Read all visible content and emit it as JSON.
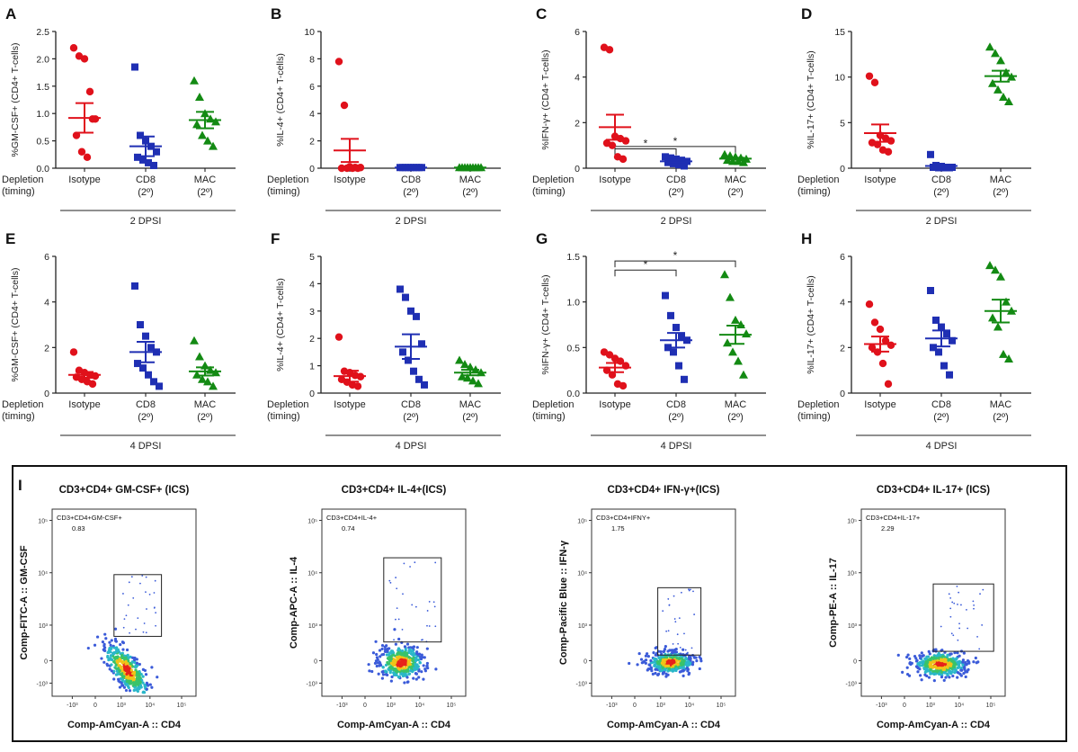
{
  "figure": {
    "panel_I_label": "I",
    "depletion_label_1": "Depletion",
    "depletion_label_2": "(timing)",
    "colors": {
      "isotype": "#e0111b",
      "cd8": "#1f2fb3",
      "mac": "#138a13",
      "axis": "#222222"
    }
  },
  "chart_data": [
    {
      "panel": "A",
      "type": "scatter",
      "ylabel": "%GM-CSF+ (CD4+ T-cells)",
      "ylim": [
        0,
        2.5
      ],
      "yticks": [
        "0.0",
        "0.5",
        "1.0",
        "1.5",
        "2.0",
        "2.5"
      ],
      "ytick_values": [
        0,
        0.5,
        1.0,
        1.5,
        2.0,
        2.5
      ],
      "categories": [
        "Isotype",
        "CD8",
        "MAC"
      ],
      "category_sublabels": [
        "",
        "(2º)",
        "(2º)"
      ],
      "group_label": "2 DPSI",
      "series": [
        {
          "name": "Isotype",
          "marker": "circle",
          "values": [
            2.2,
            2.05,
            2.0,
            1.4,
            0.9,
            0.6,
            0.3,
            0.2,
            0.9
          ],
          "mean": 0.92,
          "sem": 0.27
        },
        {
          "name": "CD8",
          "marker": "square",
          "values": [
            1.85,
            0.6,
            0.5,
            0.4,
            0.3,
            0.2,
            0.15,
            0.1,
            0.05
          ],
          "mean": 0.4,
          "sem": 0.18
        },
        {
          "name": "MAC",
          "marker": "triangle",
          "values": [
            1.6,
            1.3,
            1.0,
            0.9,
            0.85,
            0.8,
            0.6,
            0.5,
            0.4
          ],
          "mean": 0.88,
          "sem": 0.15
        }
      ],
      "significance": []
    },
    {
      "panel": "B",
      "type": "scatter",
      "ylabel": "%IL-4+ (CD4+ T-cells)",
      "ylim": [
        0,
        10
      ],
      "yticks": [
        "0",
        "2",
        "4",
        "6",
        "8",
        "10"
      ],
      "ytick_values": [
        0,
        2,
        4,
        6,
        8,
        10
      ],
      "categories": [
        "Isotype",
        "CD8",
        "MAC"
      ],
      "category_sublabels": [
        "",
        "(2º)",
        "(2º)"
      ],
      "group_label": "2 DPSI",
      "series": [
        {
          "name": "Isotype",
          "marker": "circle",
          "values": [
            7.8,
            4.6,
            0.1,
            0.05,
            0.05,
            0,
            0,
            0,
            0
          ],
          "mean": 1.3,
          "sem": 0.85
        },
        {
          "name": "CD8",
          "marker": "square",
          "values": [
            0.05,
            0.05,
            0.05,
            0.05,
            0.05,
            0.05,
            0.05,
            0.05,
            0.05
          ],
          "mean": 0.05,
          "sem": 0.0
        },
        {
          "name": "MAC",
          "marker": "triangle",
          "values": [
            0.05,
            0.05,
            0.05,
            0.05,
            0.05,
            0.05,
            0.05,
            0.05,
            0.05
          ],
          "mean": 0.05,
          "sem": 0.0
        }
      ],
      "significance": []
    },
    {
      "panel": "C",
      "type": "scatter",
      "ylabel": "%IFN-γ+ (CD4+ T-cells)",
      "ylim": [
        0,
        6
      ],
      "yticks": [
        "0",
        "2",
        "4",
        "6"
      ],
      "ytick_values": [
        0,
        2,
        4,
        6
      ],
      "categories": [
        "Isotype",
        "CD8",
        "MAC"
      ],
      "category_sublabels": [
        "",
        "(2º)",
        "(2º)"
      ],
      "group_label": "2 DPSI",
      "series": [
        {
          "name": "Isotype",
          "marker": "circle",
          "values": [
            5.3,
            5.2,
            1.4,
            1.3,
            1.2,
            1.1,
            1.0,
            0.5,
            0.4
          ],
          "mean": 1.8,
          "sem": 0.55
        },
        {
          "name": "CD8",
          "marker": "square",
          "values": [
            0.5,
            0.45,
            0.4,
            0.35,
            0.3,
            0.25,
            0.2,
            0.15,
            0.1
          ],
          "mean": 0.3,
          "sem": 0.06
        },
        {
          "name": "MAC",
          "marker": "triangle",
          "values": [
            0.6,
            0.55,
            0.5,
            0.45,
            0.4,
            0.35,
            0.3,
            0.3,
            0.25
          ],
          "mean": 0.42,
          "sem": 0.04
        }
      ],
      "significance": [
        {
          "from": 0,
          "to": 1,
          "label": "*",
          "level": 0.85
        },
        {
          "from": 0,
          "to": 2,
          "label": "*",
          "level": 0.95
        }
      ]
    },
    {
      "panel": "D",
      "type": "scatter",
      "ylabel": "%IL-17+ (CD4+ T-cells)",
      "ylim": [
        0,
        15
      ],
      "yticks": [
        "0",
        "5",
        "10",
        "15"
      ],
      "ytick_values": [
        0,
        5,
        10,
        15
      ],
      "categories": [
        "Isotype",
        "CD8",
        "MAC"
      ],
      "category_sublabels": [
        "",
        "(2º)",
        "(2º)"
      ],
      "group_label": "2 DPSI",
      "series": [
        {
          "name": "Isotype",
          "marker": "circle",
          "values": [
            10.1,
            9.4,
            3.6,
            3.3,
            3.0,
            2.8,
            2.6,
            2.0,
            1.8
          ],
          "mean": 3.85,
          "sem": 0.95
        },
        {
          "name": "CD8",
          "marker": "square",
          "values": [
            1.5,
            0.3,
            0.2,
            0.1,
            0.1,
            0.1,
            0.05,
            0.05,
            0.05
          ],
          "mean": 0.25,
          "sem": 0.15
        },
        {
          "name": "MAC",
          "marker": "triangle",
          "values": [
            13.3,
            12.6,
            11.8,
            10.5,
            10.0,
            9.3,
            8.6,
            7.8,
            7.3
          ],
          "mean": 10.1,
          "sem": 0.6
        }
      ],
      "significance": []
    },
    {
      "panel": "E",
      "type": "scatter",
      "ylabel": "%GM-CSF+ (CD4+ T-cells)",
      "ylim": [
        0,
        6
      ],
      "yticks": [
        "0",
        "2",
        "4",
        "6"
      ],
      "ytick_values": [
        0,
        2,
        4,
        6
      ],
      "categories": [
        "Isotype",
        "CD8",
        "MAC"
      ],
      "category_sublabels": [
        "",
        "(2º)",
        "(2º)"
      ],
      "group_label": "4 DPSI",
      "series": [
        {
          "name": "Isotype",
          "marker": "circle",
          "values": [
            1.8,
            1.0,
            0.9,
            0.8,
            0.75,
            0.7,
            0.6,
            0.5,
            0.4
          ],
          "mean": 0.8,
          "sem": 0.13
        },
        {
          "name": "CD8",
          "marker": "square",
          "values": [
            4.7,
            3.0,
            2.5,
            2.0,
            1.8,
            1.3,
            1.1,
            0.8,
            0.5,
            0.3
          ],
          "mean": 1.8,
          "sem": 0.45
        },
        {
          "name": "MAC",
          "marker": "triangle",
          "values": [
            2.3,
            1.6,
            1.2,
            1.0,
            0.9,
            0.8,
            0.6,
            0.5,
            0.3
          ],
          "mean": 0.95,
          "sem": 0.18
        }
      ],
      "significance": []
    },
    {
      "panel": "F",
      "type": "scatter",
      "ylabel": "%IL-4+ (CD4+ T-cells)",
      "ylim": [
        0,
        5
      ],
      "yticks": [
        "0",
        "1",
        "2",
        "3",
        "4",
        "5"
      ],
      "ytick_values": [
        0,
        1,
        2,
        3,
        4,
        5
      ],
      "categories": [
        "Isotype",
        "CD8",
        "MAC"
      ],
      "category_sublabels": [
        "",
        "(2º)",
        "(2º)"
      ],
      "group_label": "4 DPSI",
      "series": [
        {
          "name": "Isotype",
          "marker": "circle",
          "values": [
            2.05,
            0.8,
            0.75,
            0.65,
            0.6,
            0.5,
            0.4,
            0.3,
            0.25
          ],
          "mean": 0.62,
          "sem": 0.2
        },
        {
          "name": "CD8",
          "marker": "square",
          "values": [
            3.8,
            3.5,
            3.0,
            2.8,
            1.8,
            1.5,
            1.2,
            0.8,
            0.5,
            0.3
          ],
          "mean": 1.7,
          "sem": 0.45
        },
        {
          "name": "MAC",
          "marker": "triangle",
          "values": [
            1.2,
            1.05,
            0.95,
            0.85,
            0.75,
            0.6,
            0.55,
            0.45,
            0.35
          ],
          "mean": 0.75,
          "sem": 0.1
        }
      ],
      "significance": []
    },
    {
      "panel": "G",
      "type": "scatter",
      "ylabel": "%IFN-γ+ (CD4+ T-cells)",
      "ylim": [
        0,
        1.5
      ],
      "yticks": [
        "0.0",
        "0.5",
        "1.0",
        "1.5"
      ],
      "ytick_values": [
        0,
        0.5,
        1.0,
        1.5
      ],
      "categories": [
        "Isotype",
        "CD8",
        "MAC"
      ],
      "category_sublabels": [
        "",
        "(2º)",
        "(2º)"
      ],
      "group_label": "4 DPSI",
      "series": [
        {
          "name": "Isotype",
          "marker": "circle",
          "values": [
            0.45,
            0.42,
            0.38,
            0.35,
            0.3,
            0.25,
            0.2,
            0.1,
            0.08
          ],
          "mean": 0.28,
          "sem": 0.05
        },
        {
          "name": "CD8",
          "marker": "square",
          "values": [
            1.07,
            0.85,
            0.72,
            0.62,
            0.58,
            0.5,
            0.45,
            0.3,
            0.15
          ],
          "mean": 0.58,
          "sem": 0.08
        },
        {
          "name": "MAC",
          "marker": "triangle",
          "values": [
            1.3,
            1.05,
            0.8,
            0.75,
            0.65,
            0.55,
            0.45,
            0.35,
            0.2
          ],
          "mean": 0.64,
          "sem": 0.1
        }
      ],
      "significance": [
        {
          "from": 0,
          "to": 1,
          "label": "*",
          "level": 1.35
        },
        {
          "from": 0,
          "to": 2,
          "label": "*",
          "level": 1.45
        }
      ]
    },
    {
      "panel": "H",
      "type": "scatter",
      "ylabel": "%IL-17+ (CD4+ T-cells)",
      "ylim": [
        0,
        6
      ],
      "yticks": [
        "0",
        "2",
        "4",
        "6"
      ],
      "ytick_values": [
        0,
        2,
        4,
        6
      ],
      "categories": [
        "Isotype",
        "CD8",
        "MAC"
      ],
      "category_sublabels": [
        "",
        "(2º)",
        "(2º)"
      ],
      "group_label": "4 DPSI",
      "series": [
        {
          "name": "Isotype",
          "marker": "circle",
          "values": [
            3.9,
            3.1,
            2.8,
            2.3,
            2.1,
            2.0,
            1.8,
            1.3,
            0.4
          ],
          "mean": 2.15,
          "sem": 0.33
        },
        {
          "name": "CD8",
          "marker": "square",
          "values": [
            4.5,
            3.2,
            2.9,
            2.6,
            2.3,
            2.0,
            1.8,
            1.2,
            0.8
          ],
          "mean": 2.4,
          "sem": 0.35
        },
        {
          "name": "MAC",
          "marker": "triangle",
          "values": [
            5.6,
            5.4,
            5.1,
            4.0,
            3.6,
            3.3,
            2.9,
            1.7,
            1.5
          ],
          "mean": 3.6,
          "sem": 0.5
        }
      ],
      "significance": []
    }
  ],
  "flow_panels": [
    {
      "title": "CD3+CD4+ GM-CSF+ (ICS)",
      "ylabel": "Comp-FITC-A :: GM-CSF",
      "xlabel": "Comp-AmCyan-A :: CD4",
      "gate_name": "CD3+CD4+GM-CSF+",
      "gate_value": "0.83",
      "yticks": [
        "10⁵",
        "10⁴",
        "10³",
        "0",
        "-10³"
      ],
      "xticks": [
        "-10³",
        "0",
        "10³",
        "10⁴",
        "10⁵"
      ]
    },
    {
      "title": "CD3+CD4+ IL-4+(ICS)",
      "ylabel": "Comp-APC-A :: IL-4",
      "xlabel": "Comp-AmCyan-A :: CD4",
      "gate_name": "CD3+CD4+IL-4+",
      "gate_value": "0.74",
      "yticks": [
        "10⁵",
        "10⁴",
        "10³",
        "0",
        "-10³"
      ],
      "xticks": [
        "-10³",
        "0",
        "10³",
        "10⁴",
        "10⁵"
      ]
    },
    {
      "title": "CD3+CD4+ IFN-γ+(ICS)",
      "ylabel": "Comp-Pacific Blue :: IFN-γ",
      "xlabel": "Comp-AmCyan-A :: CD4",
      "gate_name": "CD3+CD4+IFNY+",
      "gate_value": "1.75",
      "yticks": [
        "10⁵",
        "10⁴",
        "10³",
        "0",
        "-10³"
      ],
      "xticks": [
        "-10³",
        "0",
        "10³",
        "10⁴",
        "10⁵"
      ]
    },
    {
      "title": "CD3+CD4+ IL-17+ (ICS)",
      "ylabel": "Comp-PE-A :: IL-17",
      "xlabel": "Comp-AmCyan-A :: CD4",
      "gate_name": "CD3+CD4+IL-17+",
      "gate_value": "2.29",
      "yticks": [
        "10⁵",
        "10⁴",
        "10³",
        "0",
        "-10³"
      ],
      "xticks": [
        "-10³",
        "0",
        "10³",
        "10⁴",
        "10⁵"
      ]
    }
  ]
}
